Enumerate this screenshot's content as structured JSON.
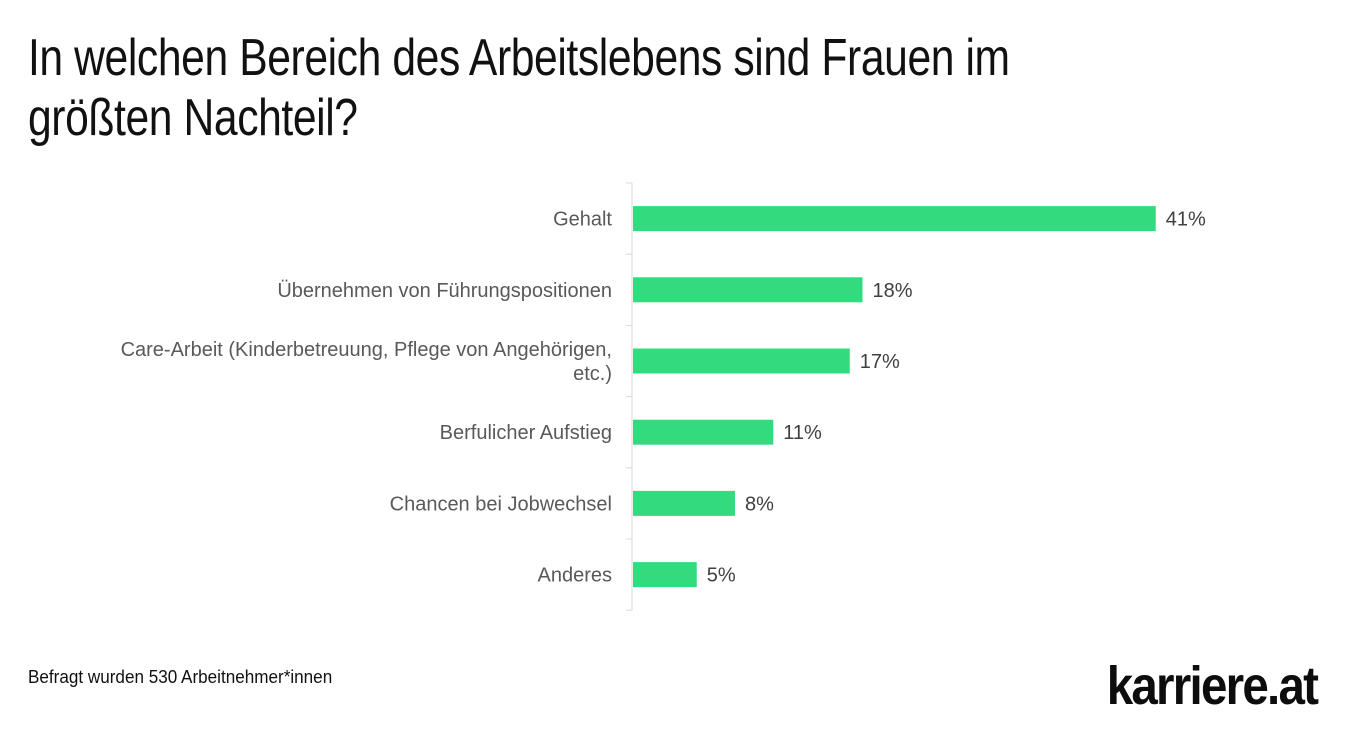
{
  "title": "In welchen Bereich des Arbeitslebens sind Frauen im größten Nachteil?",
  "footnote": "Befragt wurden 530 Arbeitnehmer*innen",
  "logo_text": "karriere.at",
  "colors": {
    "bar": "#33db7f",
    "axis": "#d9d9d9"
  },
  "chart_data": {
    "type": "bar",
    "orientation": "horizontal",
    "title": "In welchen Bereich des Arbeitslebens sind Frauen im größten Nachteil?",
    "categories": [
      [
        "Gehalt"
      ],
      [
        "Übernehmen von Führungspositionen"
      ],
      [
        "Care-Arbeit (Kinderbetreuung, Pflege von Angehörigen,",
        "etc.)"
      ],
      [
        "Berfulicher Aufstieg"
      ],
      [
        "Chancen bei Jobwechsel"
      ],
      [
        "Anderes"
      ]
    ],
    "values": [
      41,
      18,
      17,
      11,
      8,
      5
    ],
    "value_labels": [
      "41%",
      "18%",
      "17%",
      "11%",
      "8%",
      "5%"
    ],
    "unit": "%",
    "xlim": [
      0,
      45
    ],
    "grid": false,
    "legend": "none"
  }
}
